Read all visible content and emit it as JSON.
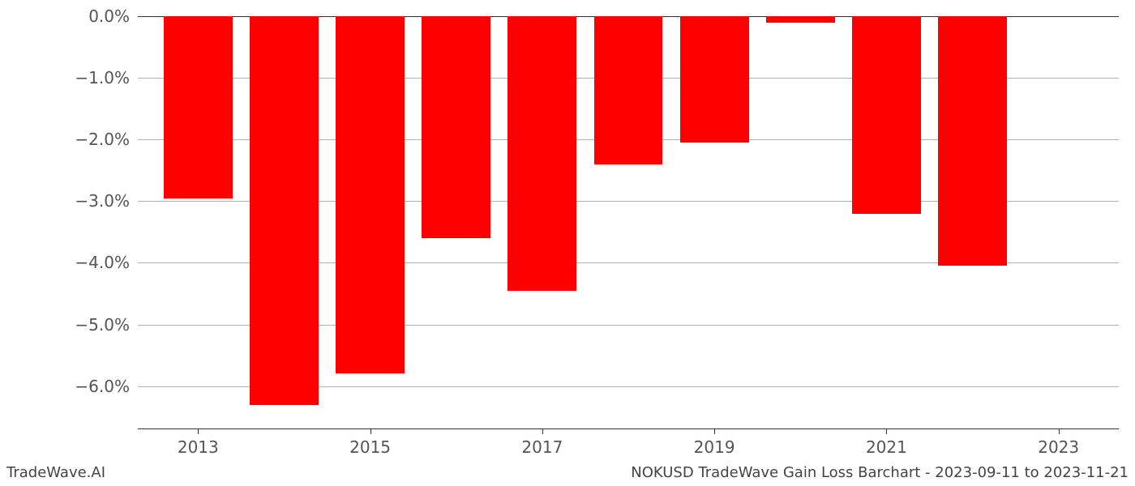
{
  "chart": {
    "type": "bar",
    "years": [
      2013,
      2014,
      2015,
      2016,
      2017,
      2018,
      2019,
      2020,
      2021,
      2022,
      2023
    ],
    "values": [
      -2.95,
      -6.3,
      -5.8,
      -3.6,
      -4.45,
      -2.4,
      -2.05,
      -0.1,
      -3.2,
      -4.05,
      null
    ],
    "bar_color": "#ff0000",
    "background_color": "#ffffff",
    "grid_color": "#b0b0b0",
    "axis_color": "#333333",
    "tick_label_color": "#555555",
    "ylim": [
      -6.7,
      0
    ],
    "ytick_step": 1.0,
    "ytick_labels": [
      "0.0%",
      "−1.0%",
      "−2.0%",
      "−3.0%",
      "−4.0%",
      "−5.0%",
      "−6.0%"
    ],
    "ytick_values": [
      0,
      -1,
      -2,
      -3,
      -4,
      -5,
      -6
    ],
    "xtick_labels": [
      "2013",
      "2015",
      "2017",
      "2019",
      "2021",
      "2023"
    ],
    "xtick_years": [
      2013,
      2015,
      2017,
      2019,
      2021,
      2023
    ],
    "x_range": [
      2012.3,
      2023.7
    ],
    "bar_width_years": 0.8,
    "label_fontsize": 20,
    "footer_fontsize": 18
  },
  "footer": {
    "left": "TradeWave.AI",
    "right": "NOKUSD TradeWave Gain Loss Barchart - 2023-09-11 to 2023-11-21"
  }
}
